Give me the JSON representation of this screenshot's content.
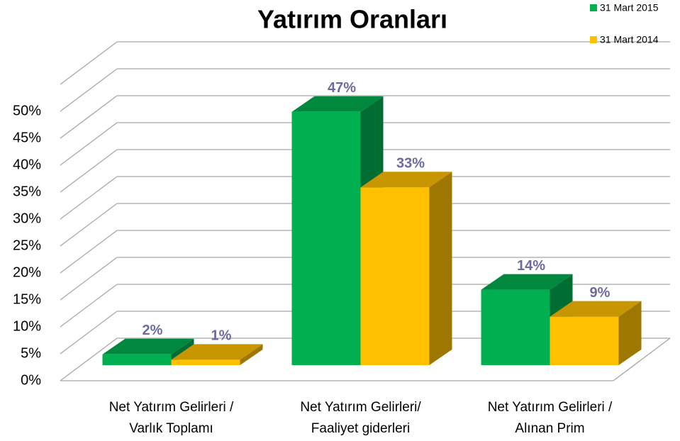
{
  "chart_data": {
    "type": "bar3d",
    "title": "Yatırım Oranları",
    "categories": [
      "Net Yatırım  Gelirleri /\nVarlık Toplamı",
      "Net Yatırım  Gelirleri/\nFaaliyet giderleri",
      "Net Yatırım  Gelirleri /\nAlınan Prim"
    ],
    "series": [
      {
        "name": "31 Mart 2015",
        "color": "#00b050",
        "values": [
          2,
          47,
          14
        ],
        "value_labels": [
          "2%",
          "47%",
          "14%"
        ]
      },
      {
        "name": "31 Mart 2014",
        "color": "#ffc000",
        "values": [
          1,
          33,
          9
        ],
        "value_labels": [
          "1%",
          "33%",
          "9%"
        ]
      }
    ],
    "ylim": [
      0,
      55
    ],
    "yticks": [
      {
        "value": 0,
        "label": "0%"
      },
      {
        "value": 5,
        "label": "5%"
      },
      {
        "value": 10,
        "label": "10%"
      },
      {
        "value": 15,
        "label": "15%"
      },
      {
        "value": 20,
        "label": "20%"
      },
      {
        "value": 25,
        "label": "25%"
      },
      {
        "value": 30,
        "label": "30%"
      },
      {
        "value": 35,
        "label": "35%"
      },
      {
        "value": 40,
        "label": "40%"
      },
      {
        "value": 45,
        "label": "45%"
      },
      {
        "value": 50,
        "label": "50%"
      }
    ],
    "grid": true,
    "legend": "top-right"
  }
}
